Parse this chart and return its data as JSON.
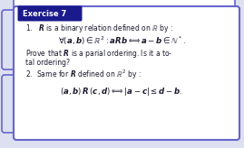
{
  "exercise_label": "Exercise 7",
  "exercise_label_color": "#ffffff",
  "exercise_label_bg": "#1a1a8c",
  "card_bg": "#ffffff",
  "card_border_color": "#6666cc",
  "outer_bg": "#dde0f0",
  "left_accent_color": "#6666cc",
  "text_color": "#1a1a2e",
  "line1": "1.   $\\boldsymbol{R}$ is a binary relation defined on $\\mathbb{R}$ by :",
  "line2": "$\\forall(\\boldsymbol{a},\\boldsymbol{b})\\in\\mathbb{R}^2:\\boldsymbol{a}\\boldsymbol{R}\\boldsymbol{b}\\Longleftrightarrow \\boldsymbol{a}-\\boldsymbol{b}\\in\\mathbb{N}^*.$",
  "line3": "Prove that $\\boldsymbol{R}$ is a parial ordering. Is it a to-",
  "line4": "tal ordering?",
  "line5": "2.  Same for $\\boldsymbol{R}$ defined on $\\mathbb{R}^2$ by :",
  "line6": "$(\\boldsymbol{a},\\boldsymbol{b})\\,\\boldsymbol{R}\\,(\\boldsymbol{c},\\boldsymbol{d})\\Longleftrightarrow|\\boldsymbol{a}-\\boldsymbol{c}|\\leq\\boldsymbol{d}-\\boldsymbol{b}.$"
}
